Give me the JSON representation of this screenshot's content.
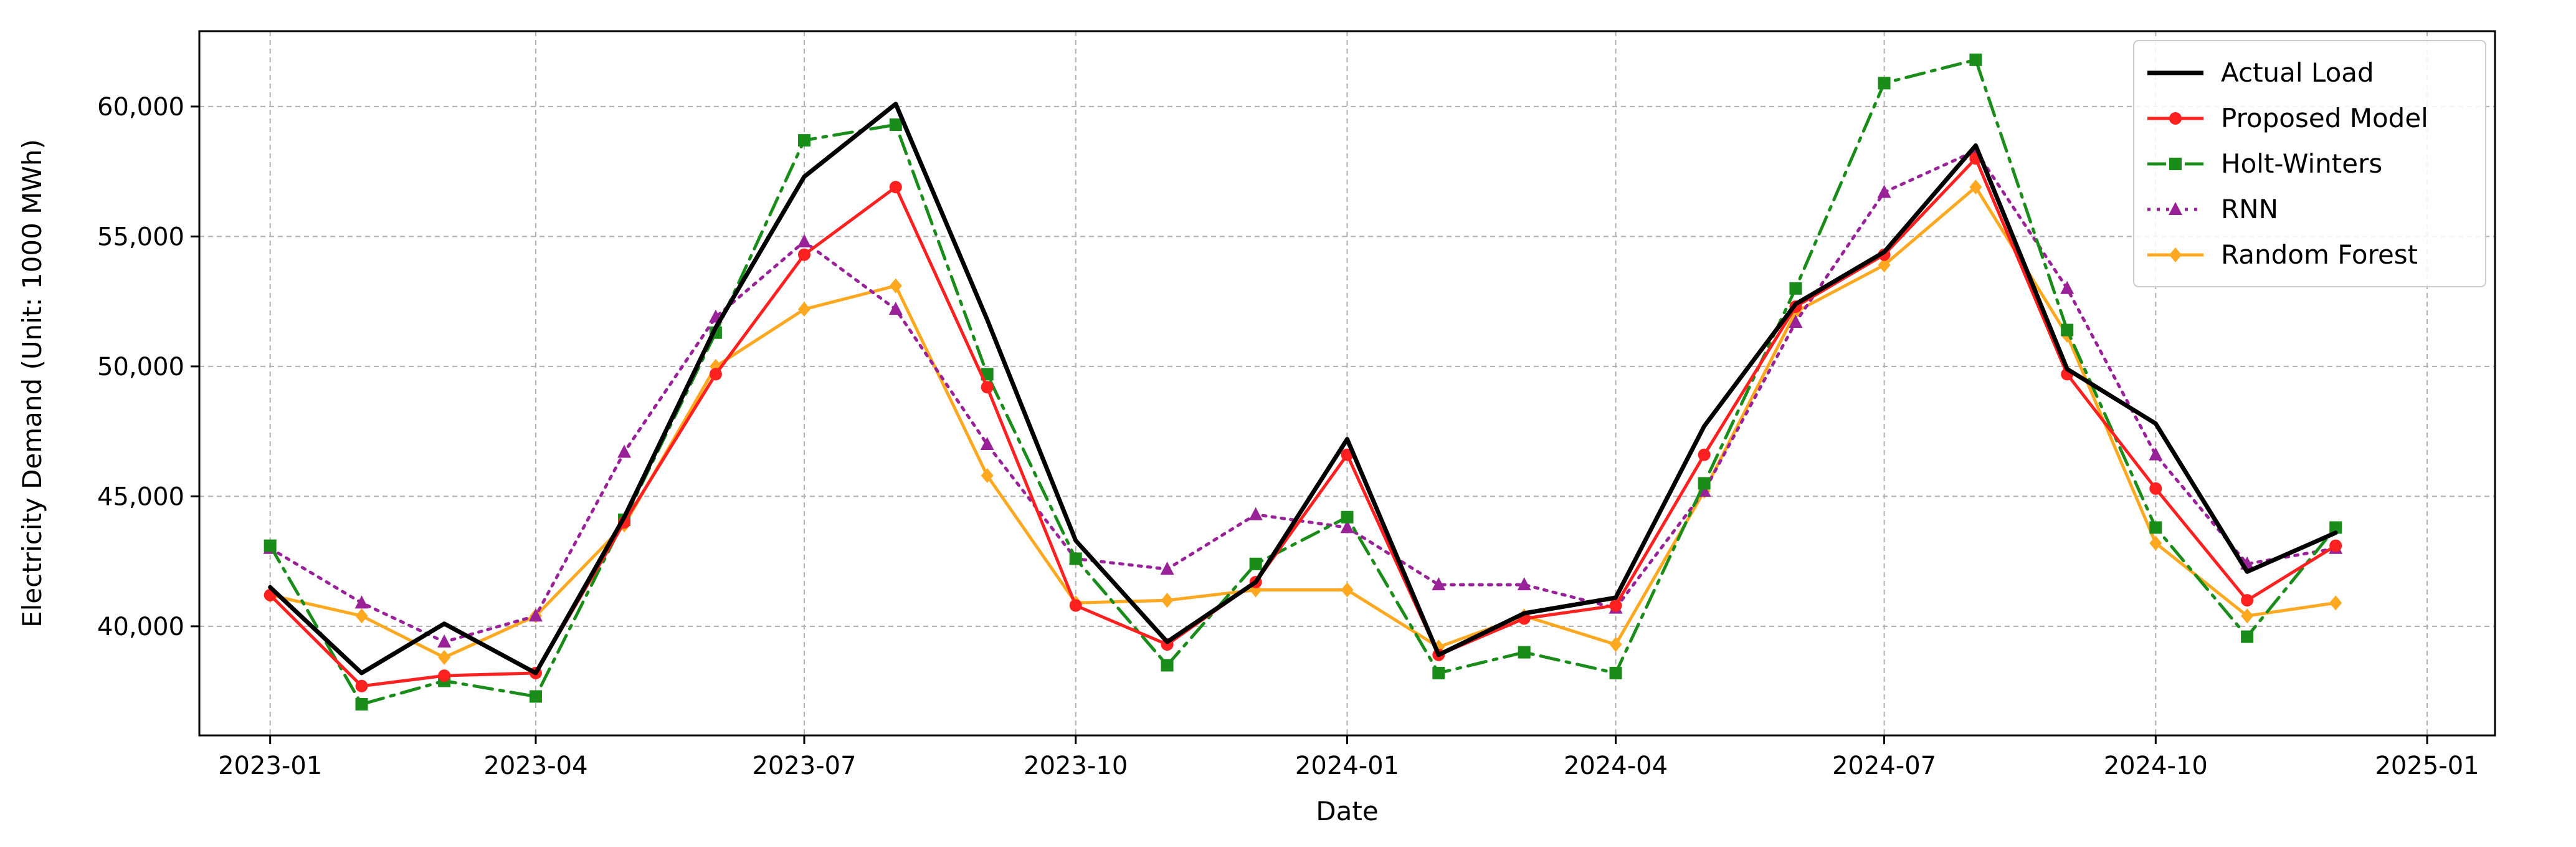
{
  "chart_data": {
    "type": "line",
    "title": "",
    "xlabel": "Date",
    "ylabel": "Electricity Demand (Unit: 1000 MWh)",
    "x": [
      "2023-01",
      "2023-02",
      "2023-03",
      "2023-04",
      "2023-05",
      "2023-06",
      "2023-07",
      "2023-08",
      "2023-09",
      "2023-10",
      "2023-11",
      "2023-12",
      "2024-01",
      "2024-02",
      "2024-03",
      "2024-04",
      "2024-05",
      "2024-06",
      "2024-07",
      "2024-08",
      "2024-09",
      "2024-10",
      "2024-11",
      "2024-12"
    ],
    "x_ticks": [
      "2023-01",
      "2023-04",
      "2023-07",
      "2023-10",
      "2024-01",
      "2024-04",
      "2024-07",
      "2024-10",
      "2025-01"
    ],
    "xlim": [
      "2022-12-08",
      "2025-01-24"
    ],
    "ylim": [
      35800,
      62900
    ],
    "y_ticks": [
      40000,
      45000,
      50000,
      55000,
      60000
    ],
    "y_tick_labels": [
      "40,000",
      "45,000",
      "50,000",
      "55,000",
      "60,000"
    ],
    "grid": true,
    "legend_position": "top-right",
    "series": [
      {
        "name": "Actual Load",
        "color": "#000000",
        "dash": "solid",
        "marker": "none",
        "width": 7,
        "values": [
          41500,
          38200,
          40100,
          38200,
          44200,
          51500,
          57300,
          60100,
          51800,
          43300,
          39400,
          41700,
          47200,
          38900,
          40500,
          41100,
          47700,
          52400,
          54400,
          58500,
          49900,
          47800,
          42100,
          43600
        ]
      },
      {
        "name": "Proposed Model",
        "color": "#ff2020",
        "dash": "solid",
        "marker": "circle",
        "width": 5,
        "values": [
          41200,
          37700,
          38100,
          38200,
          44000,
          49700,
          54300,
          56900,
          49200,
          40800,
          39300,
          41700,
          46600,
          38900,
          40300,
          40800,
          46600,
          52300,
          54300,
          58000,
          49700,
          45300,
          41000,
          43100
        ]
      },
      {
        "name": "Holt-Winters",
        "color": "#1a8c1a",
        "dash": "dashdot",
        "marker": "square",
        "width": 5,
        "values": [
          43100,
          37000,
          37900,
          37300,
          44100,
          51300,
          58700,
          59300,
          49700,
          42600,
          38500,
          42400,
          44200,
          38200,
          39000,
          38200,
          45500,
          53000,
          60900,
          61800,
          51400,
          43800,
          39600,
          43800
        ]
      },
      {
        "name": "RNN",
        "color": "#992299",
        "dash": "dotted",
        "marker": "triangle",
        "width": 5,
        "values": [
          43000,
          40900,
          39400,
          40400,
          46700,
          51900,
          54800,
          52200,
          47000,
          42600,
          42200,
          44300,
          43800,
          41600,
          41600,
          40700,
          45200,
          51700,
          56700,
          58300,
          53000,
          46600,
          42400,
          43000
        ]
      },
      {
        "name": "Random Forest",
        "color": "#ffa820",
        "dash": "solid",
        "marker": "diamond",
        "width": 5,
        "values": [
          41200,
          40400,
          38800,
          40400,
          43900,
          50000,
          52200,
          53100,
          45800,
          40900,
          41000,
          41400,
          41400,
          39200,
          40400,
          39300,
          45200,
          52100,
          53900,
          56900,
          51200,
          43200,
          40400,
          40900
        ]
      }
    ]
  }
}
